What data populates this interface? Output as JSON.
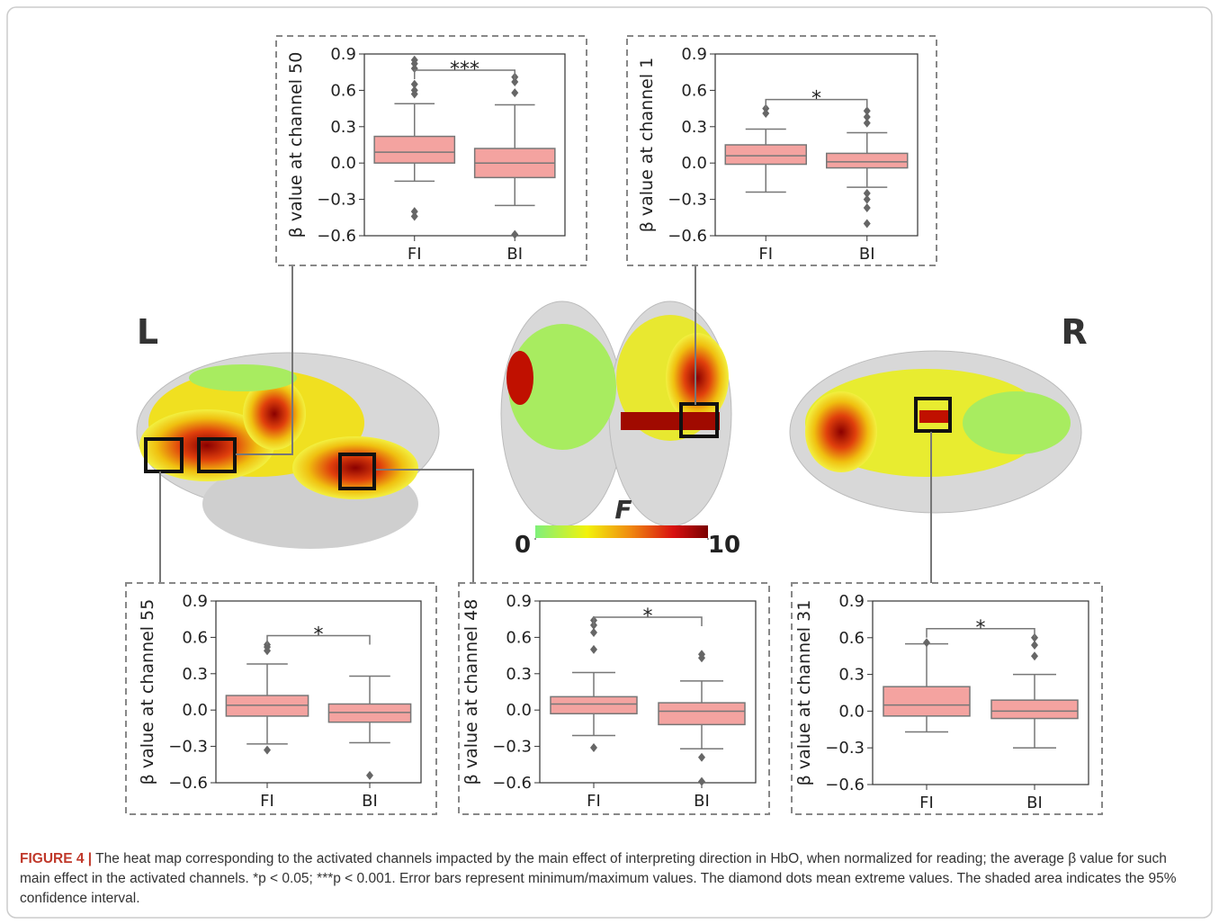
{
  "chart_data": [
    {
      "type": "box",
      "y_label": "β value at channel 50",
      "significance": "***",
      "ylim": [
        -0.6,
        0.9
      ],
      "yticks": [
        {
          "value": -0.6,
          "label": "−0.6"
        },
        {
          "value": -0.3,
          "label": "−0.3"
        },
        {
          "value": 0,
          "label": "0.0"
        },
        0.3,
        0.6,
        0.9
      ],
      "color": "#f4a3a0",
      "boxes": [
        {
          "name": "FI",
          "whisker_low": -0.15,
          "q1": 0.0,
          "median": 0.09,
          "q3": 0.22,
          "whisker_high": 0.49,
          "outliers": [
            0.85,
            0.82,
            0.78,
            0.65,
            0.6,
            0.57,
            -0.4,
            -0.44
          ]
        },
        {
          "name": "BI",
          "whisker_low": -0.35,
          "q1": -0.12,
          "median": 0.0,
          "q3": 0.12,
          "whisker_high": 0.48,
          "outliers": [
            0.71,
            0.67,
            0.58,
            -0.59
          ]
        }
      ]
    },
    {
      "type": "box",
      "y_label": "β value at channel 1",
      "significance": "*",
      "ylim": [
        -0.6,
        0.9
      ],
      "yticks": [
        {
          "value": -0.6,
          "label": "−0.6"
        },
        {
          "value": -0.3,
          "label": "−0.3"
        },
        {
          "value": 0,
          "label": "0.0"
        },
        0.3,
        0.6,
        0.9
      ],
      "color": "#f4a3a0",
      "boxes": [
        {
          "name": "FI",
          "whisker_low": -0.24,
          "q1": -0.01,
          "median": 0.06,
          "q3": 0.15,
          "whisker_high": 0.28,
          "outliers": [
            0.45,
            0.41
          ]
        },
        {
          "name": "BI",
          "whisker_low": -0.2,
          "q1": -0.04,
          "median": 0.01,
          "q3": 0.08,
          "whisker_high": 0.25,
          "outliers": [
            0.43,
            0.38,
            0.33,
            -0.25,
            -0.3,
            -0.37,
            -0.5
          ]
        }
      ]
    },
    {
      "type": "box",
      "y_label": "β value at channel 55",
      "significance": "*",
      "ylim": [
        -0.6,
        0.9
      ],
      "yticks": [
        {
          "value": -0.6,
          "label": "−0.6"
        },
        {
          "value": -0.3,
          "label": "−0.3"
        },
        {
          "value": 0,
          "label": "0.0"
        },
        0.3,
        0.6,
        0.9
      ],
      "color": "#f4a3a0",
      "boxes": [
        {
          "name": "FI",
          "whisker_low": -0.28,
          "q1": -0.05,
          "median": 0.04,
          "q3": 0.12,
          "whisker_high": 0.38,
          "outliers": [
            0.54,
            0.52,
            0.49,
            -0.33
          ]
        },
        {
          "name": "BI",
          "whisker_low": -0.27,
          "q1": -0.1,
          "median": -0.02,
          "q3": 0.05,
          "whisker_high": 0.28,
          "outliers": [
            -0.54
          ]
        }
      ]
    },
    {
      "type": "box",
      "y_label": "β value at channel 48",
      "significance": "*",
      "ylim": [
        -0.6,
        0.9
      ],
      "yticks": [
        {
          "value": -0.6,
          "label": "−0.6"
        },
        {
          "value": -0.3,
          "label": "−0.3"
        },
        {
          "value": 0,
          "label": "0.0"
        },
        0.3,
        0.6,
        0.9
      ],
      "color": "#f4a3a0",
      "boxes": [
        {
          "name": "FI",
          "whisker_low": -0.21,
          "q1": -0.03,
          "median": 0.05,
          "q3": 0.11,
          "whisker_high": 0.31,
          "outliers": [
            0.74,
            0.7,
            0.64,
            0.5,
            -0.31
          ]
        },
        {
          "name": "BI",
          "whisker_low": -0.32,
          "q1": -0.12,
          "median": -0.01,
          "q3": 0.06,
          "whisker_high": 0.24,
          "outliers": [
            0.46,
            0.43,
            -0.39,
            -0.59
          ]
        }
      ]
    },
    {
      "type": "box",
      "y_label": "β value at channel 31",
      "significance": "*",
      "ylim": [
        -0.6,
        0.9
      ],
      "yticks": [
        {
          "value": -0.6,
          "label": "−0.6"
        },
        {
          "value": -0.3,
          "label": "−0.3"
        },
        {
          "value": 0,
          "label": "0.0"
        },
        0.3,
        0.6,
        0.9
      ],
      "color": "#f4a3a0",
      "boxes": [
        {
          "name": "FI",
          "whisker_low": -0.17,
          "q1": -0.04,
          "median": 0.05,
          "q3": 0.2,
          "whisker_high": 0.55,
          "outliers": [
            0.56
          ]
        },
        {
          "name": "BI",
          "whisker_low": -0.3,
          "q1": -0.06,
          "median": 0.0,
          "q3": 0.09,
          "whisker_high": 0.3,
          "outliers": [
            0.6,
            0.54,
            0.45
          ]
        }
      ]
    }
  ],
  "brain": {
    "left_label": "L",
    "right_label": "R"
  },
  "colorbar": {
    "title": "F",
    "lim": [
      0,
      10
    ],
    "ticks": [
      0,
      10
    ]
  },
  "caption": {
    "label": "FIGURE 4 |",
    "text": "The heat map corresponding to the activated channels impacted by the main effect of interpreting direction in HbO, when normalized for reading; the average β value for such main effect in the activated channels. *p < 0.05; ***p < 0.001. Error bars represent minimum/maximum values. The diamond dots mean extreme values. The shaded area indicates the 95% confidence interval."
  }
}
